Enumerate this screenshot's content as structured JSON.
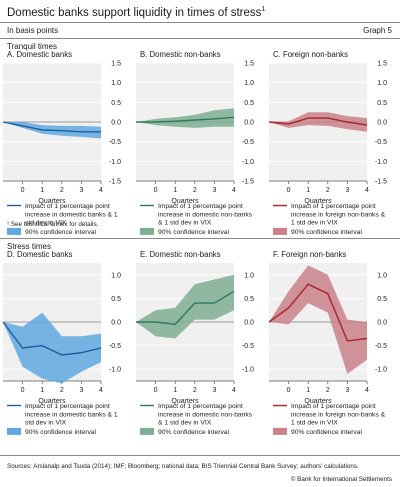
{
  "header": {
    "title": "Domestic banks support liquidity in times of stress",
    "title_note": "1",
    "units": "In basis points",
    "graph_label": "Graph 5"
  },
  "sections": {
    "tranquil": "Tranquil times",
    "stress": "Stress times"
  },
  "footer": {
    "sources": "Sources: Arslanalp and Tsuda (2014); IMF; Bloomberg; national data; BIS Triennial Central Bank Survey; authors’ calculations.",
    "credit": "© Bank for International Settlements"
  },
  "colors": {
    "domestic_banks": "#1f5b9c",
    "domestic_banks_ci": "#5fa8e0",
    "domestic_nonbanks": "#2f7a5c",
    "domestic_nonbanks_ci": "#7fae92",
    "foreign_nonbanks": "#a8232e",
    "foreign_nonbanks_ci": "#c9818a"
  },
  "chart_data": [
    {
      "type": "line",
      "title": "A. Domestic banks",
      "xlabel": "Quarters",
      "x": [
        -1,
        0,
        1,
        2,
        3,
        4
      ],
      "xticks": [
        0,
        1,
        2,
        3,
        4
      ],
      "yticks": [
        1.5,
        1.0,
        0.5,
        0.0,
        -0.5,
        -1.0,
        -1.5
      ],
      "ylim": [
        -1.5,
        1.5
      ],
      "color_key": "domestic_banks",
      "series": [
        {
          "name": "Impact of 1 percentage point increase in domestic banks & 1 std dev in VIX",
          "values": [
            0.0,
            -0.1,
            -0.2,
            -0.22,
            -0.25,
            -0.25
          ]
        },
        {
          "name": "90% confidence interval",
          "upper": [
            0.0,
            0.0,
            -0.08,
            -0.1,
            -0.1,
            -0.12
          ],
          "lower": [
            0.0,
            -0.15,
            -0.3,
            -0.35,
            -0.38,
            -0.42
          ]
        }
      ]
    },
    {
      "type": "line",
      "title": "B. Domestic non-banks",
      "xlabel": "Quarters",
      "x": [
        -1,
        0,
        1,
        2,
        3,
        4
      ],
      "xticks": [
        0,
        1,
        2,
        3,
        4
      ],
      "yticks": [
        1.5,
        1.0,
        0.5,
        0.0,
        -0.5,
        -1.0,
        -1.5
      ],
      "ylim": [
        -1.5,
        1.5
      ],
      "color_key": "domestic_nonbanks",
      "series": [
        {
          "name": "Impact of 1 percentage point increase in domestic non-banks & 1 std dev in VIX",
          "values": [
            0.0,
            0.0,
            0.02,
            0.05,
            0.08,
            0.12
          ]
        },
        {
          "name": "90% confidence interval",
          "upper": [
            0.0,
            0.08,
            0.12,
            0.18,
            0.3,
            0.35
          ],
          "lower": [
            0.0,
            -0.08,
            -0.12,
            -0.15,
            -0.12,
            -0.12
          ]
        }
      ]
    },
    {
      "type": "line",
      "title": "C. Foreign non-banks",
      "xlabel": "Quarters",
      "x": [
        -1,
        0,
        1,
        2,
        3,
        4
      ],
      "xticks": [
        0,
        1,
        2,
        3,
        4
      ],
      "yticks": [
        1.5,
        1.0,
        0.5,
        0.0,
        -0.5,
        -1.0,
        -1.5
      ],
      "ylim": [
        -1.5,
        1.5
      ],
      "color_key": "foreign_nonbanks",
      "series": [
        {
          "name": "Impact of 1 percentage point increase in foreign non-banks & 1 std dev in VIX",
          "values": [
            0.0,
            -0.05,
            0.1,
            0.1,
            0.0,
            -0.08
          ]
        },
        {
          "name": "90% confidence interval",
          "upper": [
            0.0,
            0.02,
            0.25,
            0.25,
            0.15,
            0.1
          ],
          "lower": [
            0.0,
            -0.15,
            -0.08,
            -0.1,
            -0.18,
            -0.25
          ]
        }
      ]
    },
    {
      "type": "line",
      "title": "D. Domestic banks",
      "xlabel": "Quarters",
      "x": [
        -1,
        0,
        1,
        2,
        3,
        4
      ],
      "xticks": [
        0,
        1,
        2,
        3,
        4
      ],
      "yticks": [
        1.0,
        0.5,
        0.0,
        -0.5,
        -1.0
      ],
      "ylim": [
        -1.25,
        1.25
      ],
      "color_key": "domestic_banks",
      "series": [
        {
          "name": "Impact of 1 percentage point increase in domestic banks & 1 std dev in VIX",
          "values": [
            0.0,
            -0.55,
            -0.5,
            -0.7,
            -0.65,
            -0.55
          ]
        },
        {
          "name": "90% confidence interval",
          "upper": [
            0.0,
            -0.1,
            0.2,
            -0.3,
            -0.3,
            -0.25
          ],
          "lower": [
            0.0,
            -0.95,
            -1.2,
            -1.3,
            -1.05,
            -0.85
          ]
        }
      ]
    },
    {
      "type": "line",
      "title": "E. Domestic non-banks",
      "xlabel": "Quarters",
      "x": [
        -1,
        0,
        1,
        2,
        3,
        4
      ],
      "xticks": [
        0,
        1,
        2,
        3,
        4
      ],
      "yticks": [
        1.0,
        0.5,
        0.0,
        -0.5,
        -1.0
      ],
      "ylim": [
        -1.25,
        1.25
      ],
      "color_key": "domestic_nonbanks",
      "series": [
        {
          "name": "Impact of 1 percentage point increase in domestic non-banks & 1 std dev in VIX",
          "values": [
            0.0,
            0.0,
            -0.05,
            0.4,
            0.4,
            0.65
          ]
        },
        {
          "name": "90% confidence interval",
          "upper": [
            0.0,
            0.25,
            0.3,
            0.8,
            0.9,
            1.0
          ],
          "lower": [
            0.0,
            -0.3,
            -0.35,
            0.05,
            0.05,
            0.25
          ]
        }
      ]
    },
    {
      "type": "line",
      "title": "F. Foreign non-banks",
      "xlabel": "Quarters",
      "x": [
        -1,
        0,
        1,
        2,
        3,
        4
      ],
      "xticks": [
        0,
        1,
        2,
        3,
        4
      ],
      "yticks": [
        1.0,
        0.5,
        0.0,
        -0.5,
        -1.0
      ],
      "ylim": [
        -1.25,
        1.25
      ],
      "color_key": "foreign_nonbanks",
      "series": [
        {
          "name": "Impact of 1 percentage point increase in foreign non-banks & 1 std dev in VIX",
          "values": [
            0.0,
            0.3,
            0.8,
            0.6,
            -0.4,
            -0.35
          ]
        },
        {
          "name": "90% confidence interval",
          "upper": [
            0.0,
            0.65,
            1.2,
            1.0,
            0.05,
            0.0
          ],
          "lower": [
            0.0,
            -0.05,
            0.4,
            0.2,
            -1.1,
            -0.8
          ]
        }
      ]
    }
  ]
}
